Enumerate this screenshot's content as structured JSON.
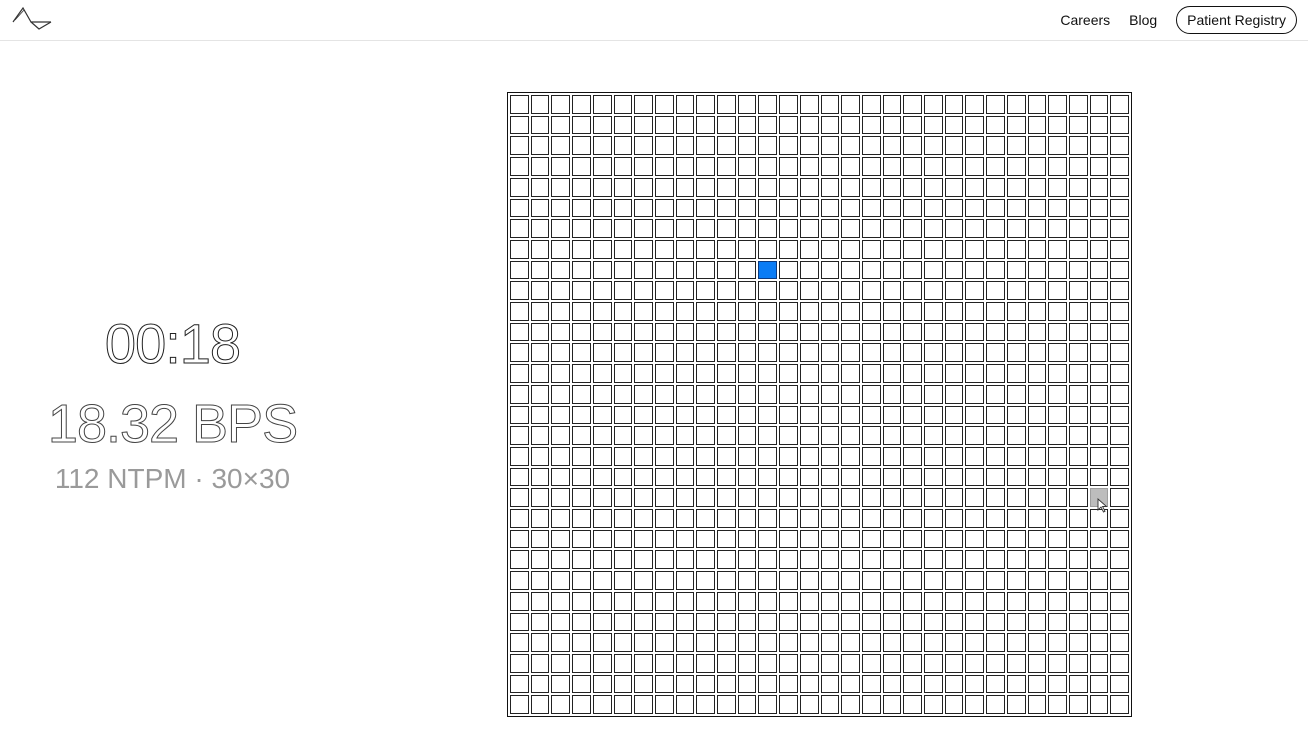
{
  "header": {
    "logo_icon": "neuralink-wave-logo",
    "nav": [
      {
        "label": "Careers"
      },
      {
        "label": "Blog"
      }
    ],
    "cta_label": "Patient Registry"
  },
  "stats": {
    "timer": "00:18",
    "bps": "18.32 BPS",
    "subline": "112 NTPM · 30×30"
  },
  "board": {
    "columns": 30,
    "rows": 30,
    "target_cell": {
      "row": 8,
      "col": 12
    },
    "hover_cell": {
      "row": 19,
      "col": 28
    },
    "target_color": "#0a7cf5",
    "hover_color": "#bdbdbd",
    "cell_border_color": "#222222"
  }
}
